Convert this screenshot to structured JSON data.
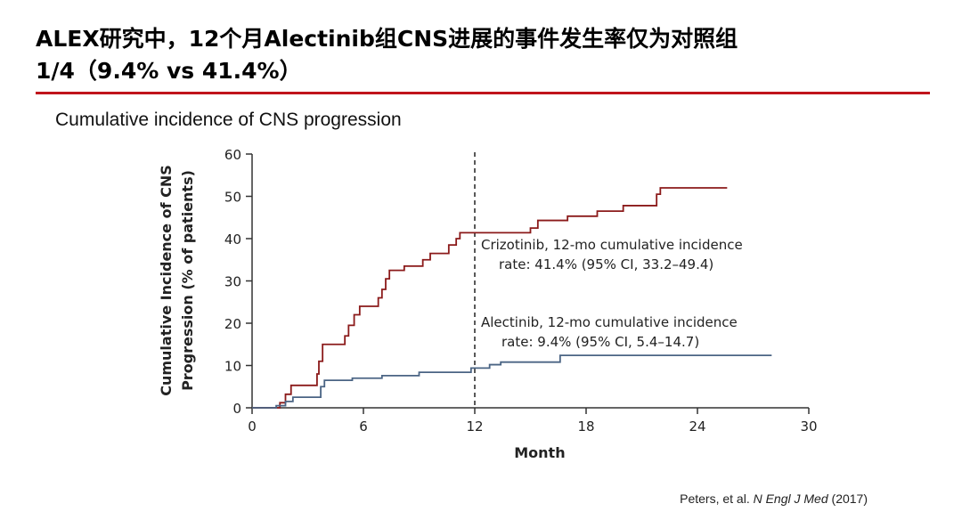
{
  "slide": {
    "title_line1": "ALEX研究中，12个月Alectinib组CNS进展的事件发生率仅为对照组",
    "title_line2": "1/4（9.4% vs 41.4%）",
    "subtitle": "Cumulative incidence of CNS progression",
    "citation_authors": "Peters, et al.",
    "citation_journal": "N Engl J Med",
    "citation_year": "(2017)",
    "accent_color": "#c0141c"
  },
  "chart_data": {
    "type": "line",
    "title": "",
    "xlabel": "Month",
    "ylabel_line1": "Cumulative Incidence of CNS",
    "ylabel_line2": "Progression (% of patients)",
    "xlim": [
      0,
      30
    ],
    "ylim": [
      0,
      60
    ],
    "xticks": [
      "0",
      "6",
      "12",
      "18",
      "24",
      "30"
    ],
    "yticks": [
      "0",
      "10",
      "20",
      "30",
      "40",
      "50",
      "60"
    ],
    "grid": false,
    "reference_line": {
      "x": 12,
      "style": "dashed"
    },
    "series": [
      {
        "name": "Crizotinib",
        "color": "#8b1a1a",
        "annotation_line1": "Crizotinib, 12-mo cumulative incidence",
        "annotation_line2": "rate: 41.4% (95% CI, 33.2–49.4)",
        "steps": [
          [
            0,
            0
          ],
          [
            1.5,
            1.2
          ],
          [
            1.8,
            3.2
          ],
          [
            2.1,
            5.3
          ],
          [
            3.5,
            8
          ],
          [
            3.6,
            11
          ],
          [
            3.8,
            15
          ],
          [
            5.0,
            17
          ],
          [
            5.2,
            19.5
          ],
          [
            5.5,
            22
          ],
          [
            5.8,
            24
          ],
          [
            6.8,
            26
          ],
          [
            7.0,
            28
          ],
          [
            7.2,
            30.5
          ],
          [
            7.4,
            32.5
          ],
          [
            8.2,
            33.5
          ],
          [
            9.2,
            35
          ],
          [
            9.6,
            36.5
          ],
          [
            10.6,
            38.5
          ],
          [
            11.0,
            40
          ],
          [
            11.2,
            41.4
          ],
          [
            15.0,
            42.5
          ],
          [
            15.4,
            44.3
          ],
          [
            17.0,
            45.3
          ],
          [
            18.6,
            46.5
          ],
          [
            20.0,
            47.8
          ],
          [
            21.8,
            50.5
          ],
          [
            22.0,
            52
          ],
          [
            25.6,
            52
          ]
        ]
      },
      {
        "name": "Alectinib",
        "color": "#4a6484",
        "annotation_line1": "Alectinib, 12-mo cumulative incidence",
        "annotation_line2": "rate: 9.4% (95% CI, 5.4–14.7)",
        "steps": [
          [
            0,
            0
          ],
          [
            1.3,
            0.5
          ],
          [
            1.8,
            1.5
          ],
          [
            2.2,
            2.5
          ],
          [
            3.7,
            5.0
          ],
          [
            3.9,
            6.5
          ],
          [
            5.4,
            7.0
          ],
          [
            7.0,
            7.6
          ],
          [
            9.0,
            8.4
          ],
          [
            11.8,
            9.4
          ],
          [
            12.8,
            10.2
          ],
          [
            13.4,
            10.8
          ],
          [
            16.6,
            12.4
          ],
          [
            28.0,
            12.4
          ]
        ]
      }
    ]
  }
}
